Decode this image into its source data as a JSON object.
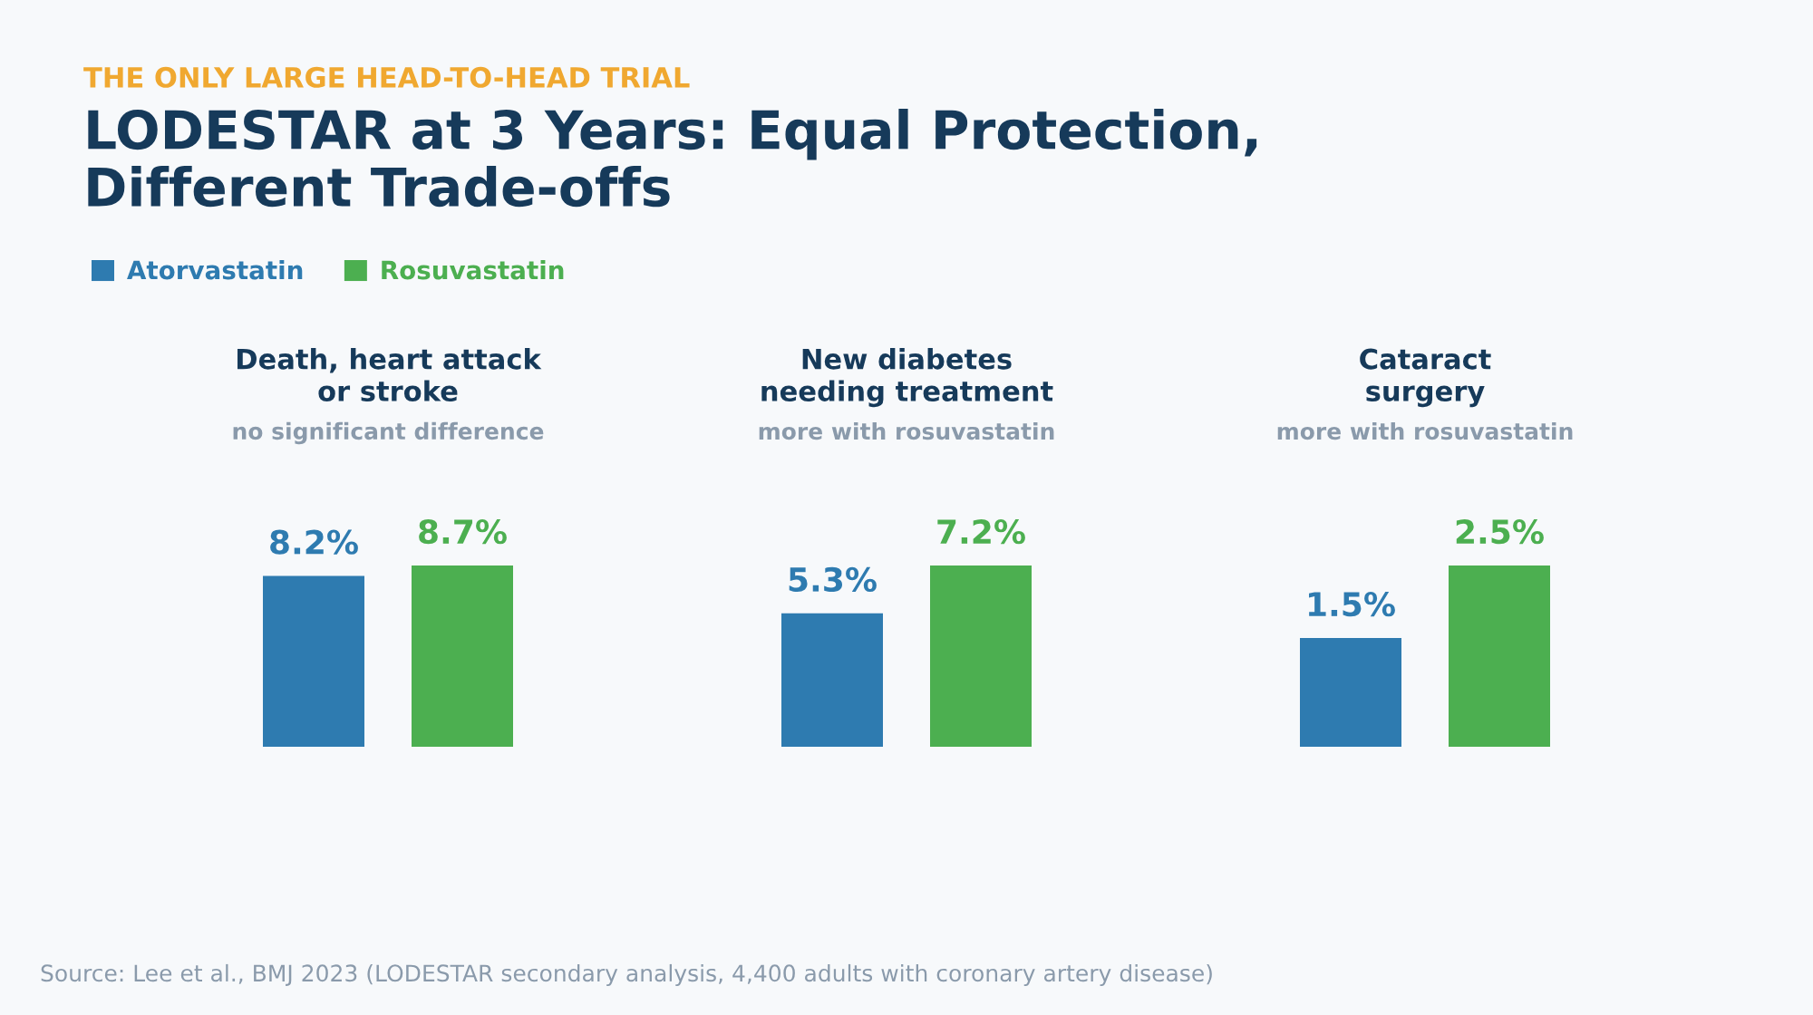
{
  "chart_data": [
    {
      "type": "other",
      "subtitle": "THE ONLY LARGE HEAD-TO-HEAD TRIAL",
      "title": "LODESTAR at 3 Years: Equal Protection,\nDifferent Trade-offs",
      "annotations": [
        "Source: Lee et al., BMJ 2023 (LODESTAR secondary analysis, 4,400 adults with coronary artery disease)"
      ]
    },
    {
      "type": "bar",
      "title": "Death, heart attack\nor stroke",
      "subtitle": "no significant difference",
      "categories": [
        null
      ],
      "legend": "top left",
      "series": [
        {
          "name": "Atorvastatin",
          "color": "#2e7bb0",
          "values": [
            8.2
          ],
          "value_labels": [
            "8.2%"
          ]
        },
        {
          "name": "Rosuvastatin",
          "color": "#4caf50",
          "values": [
            8.7
          ],
          "value_labels": [
            "8.7%"
          ]
        }
      ]
    },
    {
      "type": "bar",
      "title": "New diabetes\nneeding treatment",
      "subtitle": "more with rosuvastatin",
      "categories": [
        null
      ],
      "series": [
        {
          "color": "#2e7bb0",
          "values": [
            5.3
          ],
          "value_labels": [
            "5.3%"
          ]
        },
        {
          "color": "#4caf50",
          "values": [
            7.2
          ],
          "value_labels": [
            "7.2%"
          ]
        }
      ]
    },
    {
      "type": "bar",
      "title": "Cataract\nsurgery",
      "subtitle": "more with rosuvastatin",
      "categories": [
        null
      ],
      "series": [
        {
          "color": "#2e7bb0",
          "values": [
            1.5
          ],
          "value_labels": [
            "1.5%"
          ]
        },
        {
          "color": "#4caf50",
          "values": [
            2.5
          ],
          "value_labels": [
            "2.5%"
          ]
        }
      ]
    }
  ]
}
